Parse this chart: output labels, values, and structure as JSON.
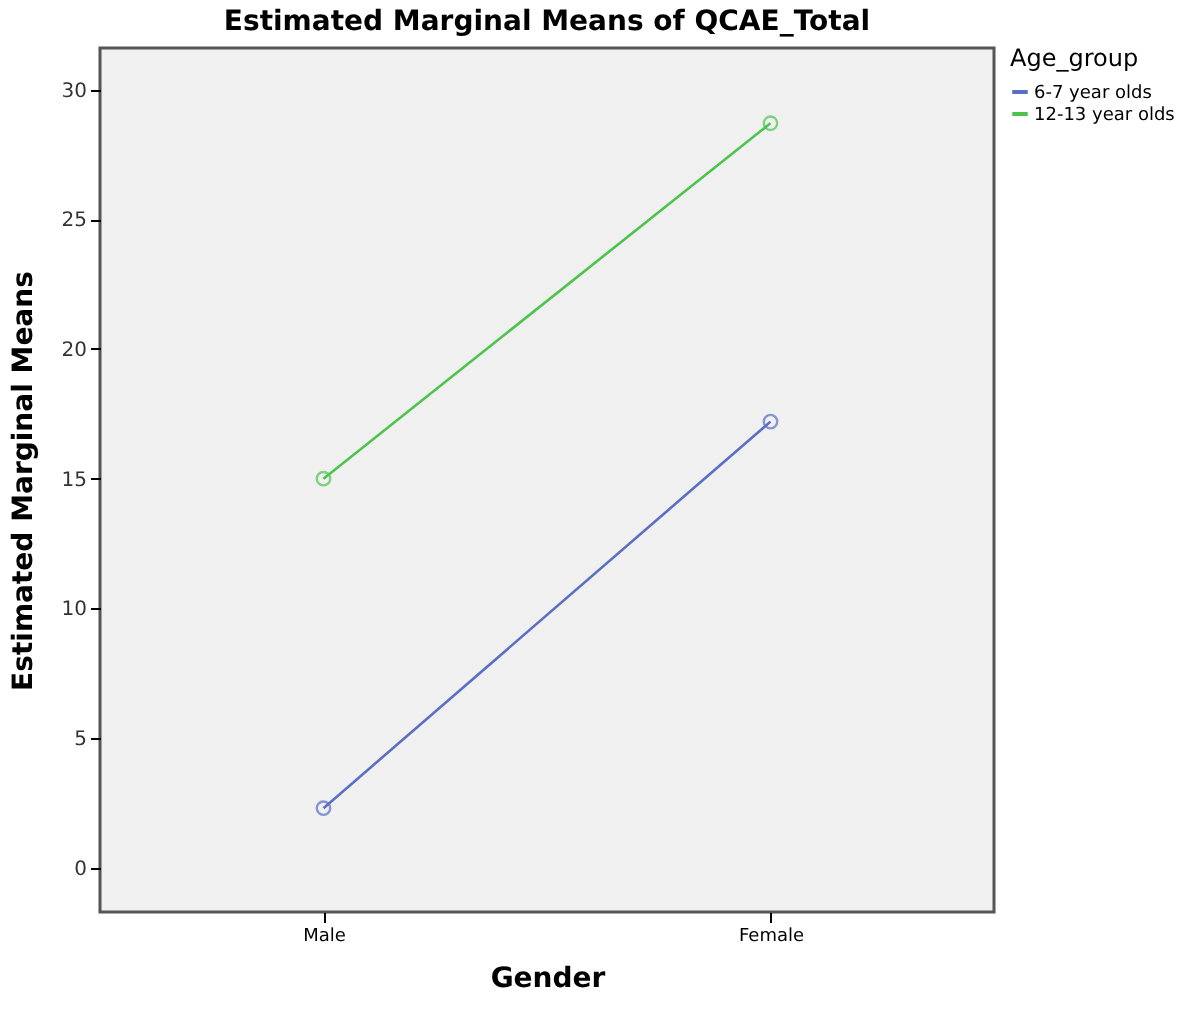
{
  "chart_data": {
    "type": "line",
    "title": "Estimated Marginal Means of QCAE_Total",
    "xlabel": "Gender",
    "ylabel": "Estimated Marginal Means",
    "legend_title": "Age_group",
    "categories": [
      "Male",
      "Female"
    ],
    "series": [
      {
        "name": "6-7 year olds",
        "color": "#5a6fc4",
        "values": [
          2.3,
          17.2
        ]
      },
      {
        "name": "12-13 year olds",
        "color": "#4cc44c",
        "values": [
          15.0,
          28.7
        ]
      }
    ],
    "ylim": [
      -1.7,
      31.6
    ],
    "yticks": [
      0,
      5,
      10,
      15,
      20,
      25,
      30
    ],
    "grid": false,
    "legend": "top right",
    "marker": "circle",
    "line_style": "solid"
  }
}
